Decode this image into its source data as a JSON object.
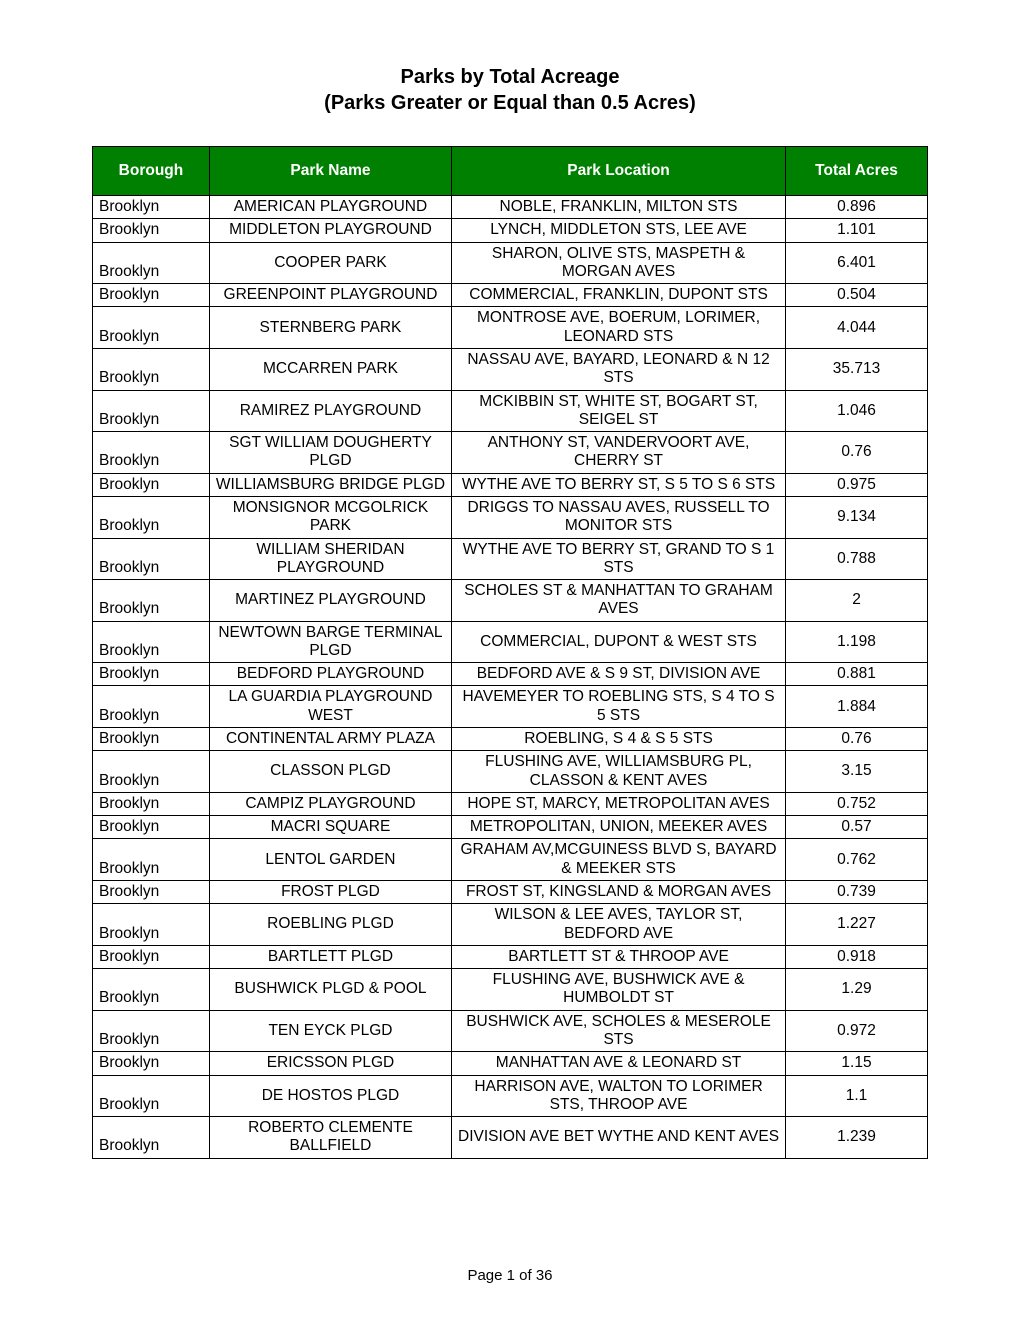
{
  "title": {
    "line1": "Parks by Total Acreage",
    "line2": "(Parks Greater or Equal than 0.5 Acres)"
  },
  "table": {
    "header_bg": "#008000",
    "header_fg": "#ffffff",
    "col_widths_pct": [
      14,
      29,
      40,
      17
    ],
    "columns": [
      "Borough",
      "Park Name",
      "Park Location",
      "Total Acres"
    ],
    "rows": [
      [
        "Brooklyn",
        "AMERICAN PLAYGROUND",
        "NOBLE, FRANKLIN, MILTON STS",
        "0.896"
      ],
      [
        "Brooklyn",
        "MIDDLETON PLAYGROUND",
        "LYNCH, MIDDLETON STS, LEE AVE",
        "1.101"
      ],
      [
        "Brooklyn",
        "COOPER PARK",
        "SHARON, OLIVE STS, MASPETH & MORGAN AVES",
        "6.401"
      ],
      [
        "Brooklyn",
        "GREENPOINT PLAYGROUND",
        "COMMERCIAL, FRANKLIN, DUPONT STS",
        "0.504"
      ],
      [
        "Brooklyn",
        "STERNBERG PARK",
        "MONTROSE AVE, BOERUM, LORIMER, LEONARD STS",
        "4.044"
      ],
      [
        "Brooklyn",
        "MCCARREN PARK",
        "NASSAU AVE, BAYARD, LEONARD & N 12 STS",
        "35.713"
      ],
      [
        "Brooklyn",
        "RAMIREZ PLAYGROUND",
        "MCKIBBIN ST, WHITE ST, BOGART ST, SEIGEL ST",
        "1.046"
      ],
      [
        "Brooklyn",
        "SGT WILLIAM DOUGHERTY PLGD",
        "ANTHONY ST, VANDERVOORT AVE, CHERRY ST",
        "0.76"
      ],
      [
        "Brooklyn",
        "WILLIAMSBURG BRIDGE PLGD",
        "WYTHE AVE TO BERRY ST, S 5 TO S 6 STS",
        "0.975"
      ],
      [
        "Brooklyn",
        "MONSIGNOR MCGOLRICK PARK",
        "DRIGGS TO NASSAU AVES, RUSSELL TO MONITOR STS",
        "9.134"
      ],
      [
        "Brooklyn",
        "WILLIAM SHERIDAN PLAYGROUND",
        "WYTHE AVE TO BERRY ST, GRAND TO S 1 STS",
        "0.788"
      ],
      [
        "Brooklyn",
        "MARTINEZ PLAYGROUND",
        "SCHOLES ST & MANHATTAN TO GRAHAM AVES",
        "2"
      ],
      [
        "Brooklyn",
        "NEWTOWN BARGE TERMINAL PLGD",
        "COMMERCIAL, DUPONT & WEST STS",
        "1.198"
      ],
      [
        "Brooklyn",
        "BEDFORD PLAYGROUND",
        "BEDFORD AVE & S 9 ST, DIVISION AVE",
        "0.881"
      ],
      [
        "Brooklyn",
        "LA GUARDIA PLAYGROUND WEST",
        "HAVEMEYER TO ROEBLING STS, S 4 TO S 5 STS",
        "1.884"
      ],
      [
        "Brooklyn",
        "CONTINENTAL ARMY PLAZA",
        "ROEBLING, S 4 & S 5 STS",
        "0.76"
      ],
      [
        "Brooklyn",
        "CLASSON PLGD",
        "FLUSHING AVE, WILLIAMSBURG PL, CLASSON & KENT AVES",
        "3.15"
      ],
      [
        "Brooklyn",
        "CAMPIZ PLAYGROUND",
        "HOPE ST, MARCY, METROPOLITAN AVES",
        "0.752"
      ],
      [
        "Brooklyn",
        "MACRI SQUARE",
        "METROPOLITAN, UNION, MEEKER AVES",
        "0.57"
      ],
      [
        "Brooklyn",
        "LENTOL GARDEN",
        "GRAHAM AV,MCGUINESS BLVD S, BAYARD & MEEKER STS",
        "0.762"
      ],
      [
        "Brooklyn",
        "FROST PLGD",
        "FROST ST, KINGSLAND & MORGAN AVES",
        "0.739"
      ],
      [
        "Brooklyn",
        "ROEBLING PLGD",
        "WILSON & LEE AVES, TAYLOR ST, BEDFORD AVE",
        "1.227"
      ],
      [
        "Brooklyn",
        "BARTLETT PLGD",
        "BARTLETT ST & THROOP AVE",
        "0.918"
      ],
      [
        "Brooklyn",
        "BUSHWICK PLGD & POOL",
        "FLUSHING AVE, BUSHWICK AVE & HUMBOLDT ST",
        "1.29"
      ],
      [
        "Brooklyn",
        "TEN EYCK PLGD",
        "BUSHWICK AVE, SCHOLES & MESEROLE STS",
        "0.972"
      ],
      [
        "Brooklyn",
        "ERICSSON PLGD",
        "MANHATTAN AVE & LEONARD ST",
        "1.15"
      ],
      [
        "Brooklyn",
        "DE HOSTOS PLGD",
        "HARRISON AVE, WALTON TO LORIMER STS, THROOP AVE",
        "1.1"
      ],
      [
        "Brooklyn",
        "ROBERTO CLEMENTE BALLFIELD",
        "DIVISION AVE BET WYTHE AND KENT AVES",
        "1.239"
      ]
    ]
  },
  "footer": "Page 1 of 36"
}
